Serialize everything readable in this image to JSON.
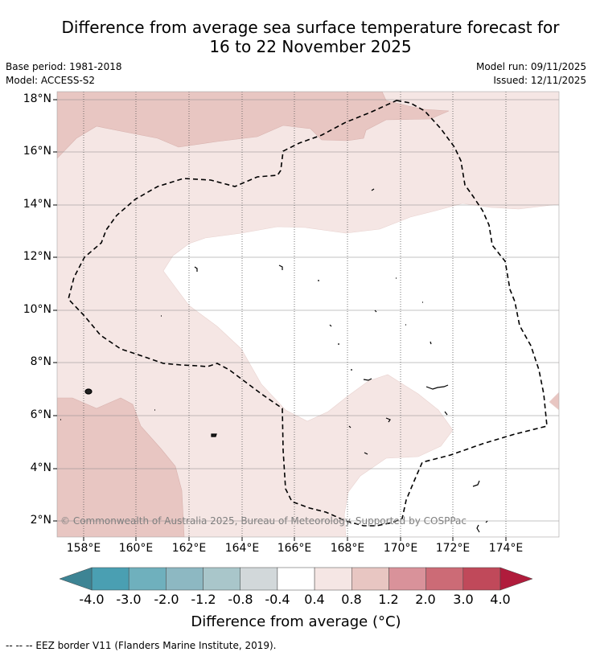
{
  "title": {
    "line1": "Difference from average sea surface temperature forecast for",
    "line2": "16 to 22 November 2025"
  },
  "meta": {
    "base_period": "Base period: 1981-2018",
    "model": "Model: ACCESS-S2",
    "model_run": "Model run: 09/11/2025",
    "issued": "Issued: 12/11/2025"
  },
  "map": {
    "lat_labels": [
      "18°N",
      "16°N",
      "14°N",
      "12°N",
      "10°N",
      "8°N",
      "6°N",
      "4°N",
      "2°N"
    ],
    "lon_labels": [
      "158°E",
      "160°E",
      "162°E",
      "164°E",
      "166°E",
      "168°E",
      "170°E",
      "172°E",
      "174°E"
    ],
    "copyright": "© Commonwealth of Australia 2025, Bureau of Meteorology. Supported by COSPPac"
  },
  "colorbar": {
    "labels": [
      "-4.0",
      "-3.0",
      "-2.0",
      "-1.2",
      "-0.8",
      "-0.4",
      "0.4",
      "0.8",
      "1.2",
      "2.0",
      "3.0",
      "4.0"
    ],
    "colors": [
      "#4a9fb2",
      "#6fb0bd",
      "#8db8c2",
      "#a9c6ca",
      "#d2d8da",
      "#ffffff",
      "#f5e6e4",
      "#e8c6c2",
      "#d9929a",
      "#cc6b76",
      "#c0495a",
      "#b3263f"
    ],
    "under_color": "#3d8494",
    "over_color": "#b01c3c",
    "title": "Difference from average (°C)"
  },
  "footer": "--  --  -- EEZ border V11 (Flanders Marine Institute, 2019)."
}
